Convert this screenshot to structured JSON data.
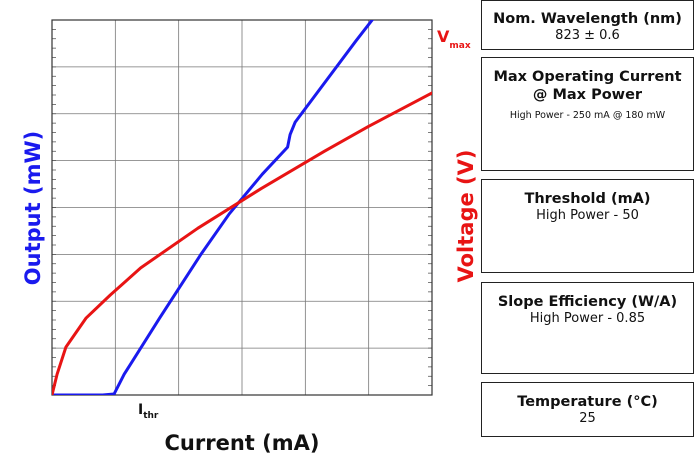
{
  "chart_data": {
    "type": "line",
    "title": "",
    "xlabel": "Current (mA)",
    "ylabel_left": "Output (mW)",
    "ylabel_right": "Voltage (V)",
    "x_tick_labels": "none",
    "y_tick_labels": "none",
    "grid": true,
    "xlim": [
      0,
      300
    ],
    "ylim": [
      0,
      180
    ],
    "series": [
      {
        "axis": "left",
        "color": "#1a1aee",
        "x": [
          0,
          40,
          49,
          57,
          85,
          117,
          140,
          166,
          186,
          188,
          192,
          240,
          300
        ],
        "y": [
          0,
          0,
          0.5,
          10,
          37,
          67,
          87,
          106,
          119,
          125,
          131,
          170,
          217
        ]
      },
      {
        "axis": "right",
        "color": "#e81414",
        "x": [
          0,
          4,
          11,
          27,
          46,
          70,
          115,
          165,
          215,
          250,
          300
        ],
        "y": [
          0,
          10,
          23,
          37,
          48,
          61,
          80,
          99,
          117,
          129,
          145
        ]
      }
    ],
    "annotations": {
      "ithr": "I",
      "ithr_sub": "thr",
      "vmax": "V",
      "vmax_sub": "max"
    }
  },
  "colors": {
    "output": "#1a1aee",
    "voltage": "#e81414",
    "grid": "#777777"
  },
  "specs": {
    "wavelength": {
      "label": "Nom. Wavelength (nm)",
      "value": "823 ± 0.6"
    },
    "max_current": {
      "label": "Max Operating Current @ Max Power",
      "value": "High Power - 250 mA @ 180 mW"
    },
    "threshold": {
      "label": "Threshold (mA)",
      "value": "High Power - 50"
    },
    "slope": {
      "label": "Slope Efficiency (W/A)",
      "value": "High Power - 0.85"
    },
    "temperature": {
      "label": "Temperature (°C)",
      "value": "25"
    }
  }
}
